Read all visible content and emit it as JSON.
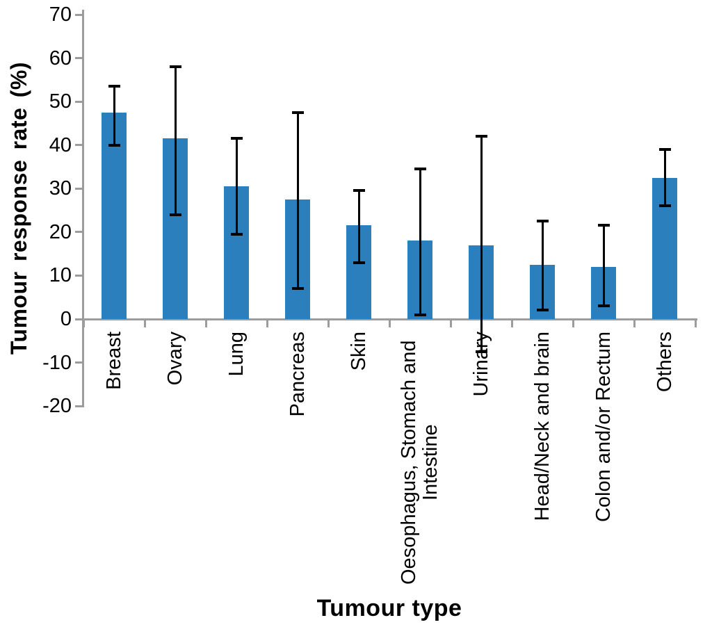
{
  "chart_data": {
    "type": "bar",
    "title": "",
    "xlabel": "Tumour type",
    "ylabel": "Tumour response rate (%)",
    "categories": [
      "Breast",
      "Ovary",
      "Lung",
      "Pancreas",
      "Skin",
      "Oesophagus, Stomach and Intestine",
      "Urinary",
      "Head/Neck and brain",
      "Colon and/or Rectum",
      "Others"
    ],
    "values": [
      47.5,
      41.5,
      30.5,
      27.5,
      21.5,
      18,
      17,
      12.5,
      12,
      32.5
    ],
    "error_low": [
      40,
      24,
      19.5,
      7,
      13,
      1,
      -7.5,
      2,
      3,
      26
    ],
    "error_high": [
      53.5,
      58,
      41.5,
      47.5,
      29.5,
      34.5,
      42,
      22.5,
      21.5,
      39
    ],
    "ylim": [
      -20,
      70
    ],
    "ytick_step": 10,
    "ytick_labels": [
      "70",
      "60",
      "50",
      "40",
      "30",
      "20",
      "10",
      "0",
      "-10",
      "-20"
    ],
    "grid": false,
    "legend": null,
    "bar_color": "#2B7FBC",
    "axis_color": "#9C9C9C",
    "error_color": "#000000",
    "text_color": "#000000"
  }
}
